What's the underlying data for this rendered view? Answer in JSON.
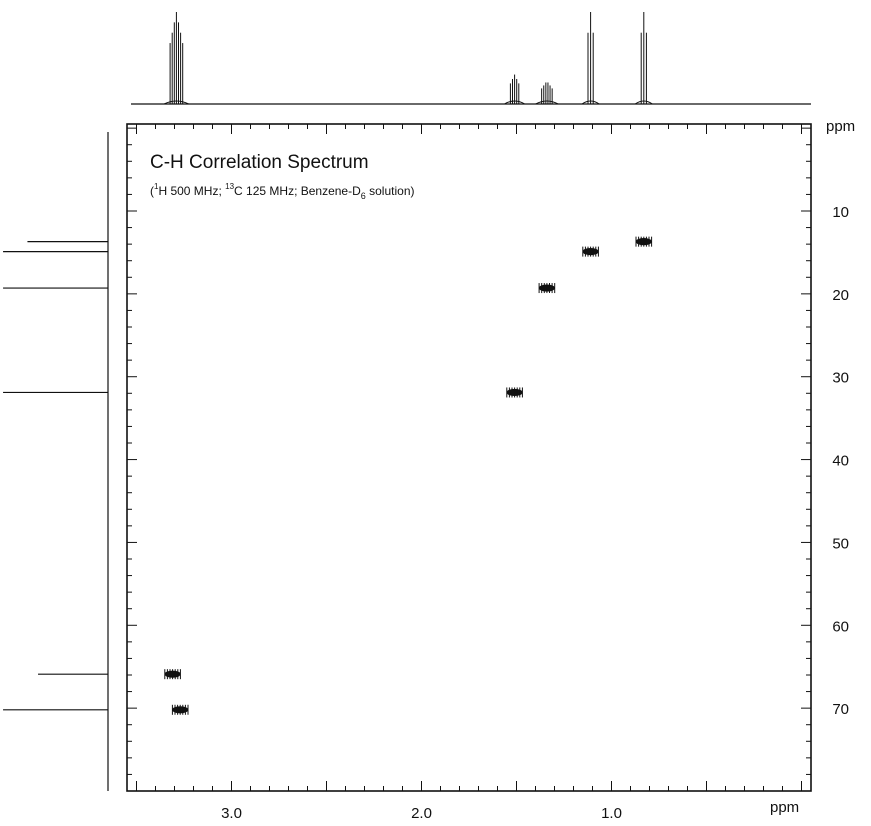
{
  "chart_data": {
    "type": "heatmap",
    "title": "C-H Correlation Spectrum",
    "subtitle": {
      "open": "(",
      "h_sup": "1",
      "h_text": "H 500 MHz; ",
      "c_sup": "13",
      "c_text": "C 125 MHz; Benzene-D",
      "d_sub": "6",
      "end": " solution)"
    },
    "x_axis": {
      "unit": "ppm",
      "range": [
        3.55,
        -0.05
      ],
      "tick_labels": [
        "3.0",
        "2.0",
        "1.0"
      ],
      "tick_values": [
        3.0,
        2.0,
        1.0
      ]
    },
    "y_axis": {
      "unit": "ppm",
      "range": [
        -0.5,
        80
      ],
      "tick_labels": [
        "10",
        "20",
        "30",
        "40",
        "50",
        "60",
        "70"
      ],
      "tick_values": [
        10,
        20,
        30,
        40,
        50,
        60,
        70
      ]
    },
    "cross_peaks": [
      {
        "h": 3.31,
        "c": 65.9
      },
      {
        "h": 3.27,
        "c": 70.2
      },
      {
        "h": 1.51,
        "c": 31.9
      },
      {
        "h": 1.34,
        "c": 19.3
      },
      {
        "h": 1.11,
        "c": 14.9
      },
      {
        "h": 0.83,
        "c": 13.7
      }
    ],
    "proton_multiplets": [
      {
        "shift": 3.29,
        "height": 1.0,
        "lines": 7
      },
      {
        "shift": 1.51,
        "height": 0.32,
        "lines": 5
      },
      {
        "shift": 1.34,
        "height": 0.25,
        "lines": 6
      },
      {
        "shift": 1.11,
        "height": 1.0,
        "lines": 3
      },
      {
        "shift": 0.83,
        "height": 1.0,
        "lines": 3
      }
    ],
    "carbon_peaks": [
      {
        "shift": 13.7,
        "length": 0.76
      },
      {
        "shift": 14.9,
        "length": 0.99
      },
      {
        "shift": 19.3,
        "length": 0.99
      },
      {
        "shift": 31.9,
        "length": 0.99
      },
      {
        "shift": 65.9,
        "length": 0.66
      },
      {
        "shift": 70.2,
        "length": 0.99
      }
    ]
  }
}
